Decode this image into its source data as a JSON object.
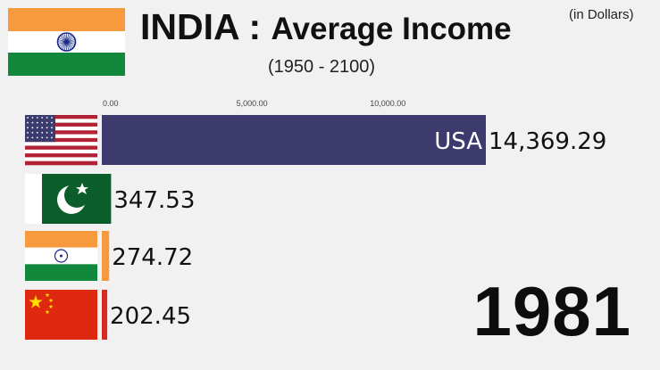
{
  "header": {
    "flag_icon": "india-flag-icon",
    "title_main": "INDIA : ",
    "title_rest": "Average Income",
    "subtitle": "(1950 - 2100)",
    "unit_note": "(in Dollars)"
  },
  "year": "1981",
  "colors": {
    "USA": "#3d3a6e",
    "Pakistan": "#0b5e2a",
    "India": "#f79a3e",
    "China": "#d72a1f"
  },
  "chart_data": {
    "type": "bar",
    "orientation": "horizontal",
    "title": "INDIA : Average Income",
    "subtitle": "(1950 - 2100)",
    "unit": "(in Dollars)",
    "categories": [
      "USA",
      "Pakistan",
      "India",
      "China"
    ],
    "values": [
      14369.29,
      347.53,
      274.72,
      202.45
    ],
    "value_labels": [
      "14,369.29",
      "347.53",
      "274.72",
      "202.45"
    ],
    "bar_labels": [
      "USA",
      "",
      "",
      ""
    ],
    "flag_icons": [
      "usa-flag-icon",
      "pakistan-flag-icon",
      "india-flag-icon",
      "china-flag-icon"
    ],
    "xlim": [
      0,
      14369.29
    ],
    "xticks": [
      0,
      5000,
      10000
    ],
    "xtick_labels": [
      "0.00",
      "5,000.00",
      "10,000.00"
    ],
    "grid": false,
    "legend": "none"
  }
}
